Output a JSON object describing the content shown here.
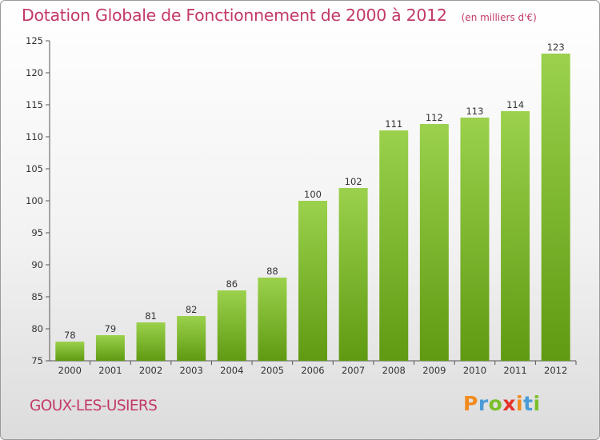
{
  "header": {
    "title": "Dotation Globale de Fonctionnement de 2000 à 2012",
    "subtitle": "(en milliers d'€)"
  },
  "footer": {
    "commune": "GOUX-LES-USIERS",
    "logo_letters": [
      "P",
      "r",
      "o",
      "x",
      "i",
      "t",
      "i"
    ],
    "logo_colors": [
      "#f28b1d",
      "#4a9cd8",
      "#7bbf2a",
      "#e5332a",
      "#f28b1d",
      "#4a9cd8",
      "#7bbf2a"
    ]
  },
  "colors": {
    "bar_light": "#9bd14c",
    "bar_dark": "#5f9a12",
    "title": "#c33a66",
    "axis": "#555555"
  },
  "chart_data": {
    "type": "bar",
    "categories": [
      "2000",
      "2001",
      "2002",
      "2003",
      "2004",
      "2005",
      "2006",
      "2007",
      "2008",
      "2009",
      "2010",
      "2011",
      "2012"
    ],
    "values": [
      78,
      79,
      81,
      82,
      86,
      88,
      100,
      102,
      111,
      112,
      113,
      114,
      123
    ],
    "ylim": [
      75,
      125
    ],
    "yticks": [
      75,
      80,
      85,
      90,
      95,
      100,
      105,
      110,
      115,
      120,
      125
    ],
    "grid": false
  }
}
